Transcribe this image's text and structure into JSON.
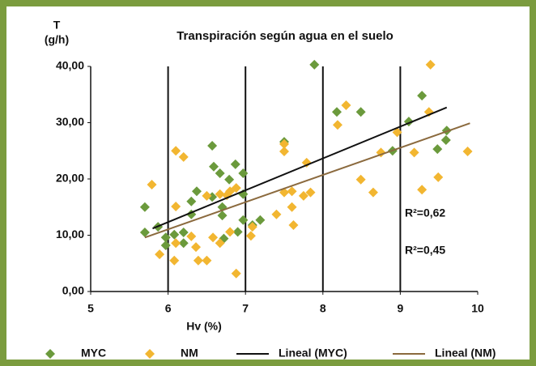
{
  "chart_data": {
    "type": "scatter",
    "title": "Transpiración según agua en el suelo",
    "ylabel": "T",
    "yunit": "(g/h)",
    "xlabel": "Hv (%)",
    "xlim": [
      5,
      10
    ],
    "xticks": [
      5,
      6,
      7,
      8,
      9,
      10
    ],
    "ylim": [
      0,
      40
    ],
    "yticks": [
      {
        "value": 0,
        "label": "0,00"
      },
      {
        "value": 10,
        "label": "10,00"
      },
      {
        "value": 20,
        "label": "20,00"
      },
      {
        "value": 30,
        "label": "30,00"
      },
      {
        "value": 40,
        "label": "40,00"
      }
    ],
    "grid_x": [
      6,
      7,
      8,
      9
    ],
    "series": [
      {
        "name": "MYC",
        "color": "#6b9a3c",
        "x": [
          5.7,
          5.7,
          5.87,
          5.97,
          5.97,
          6.08,
          6.2,
          6.2,
          6.3,
          6.3,
          6.37,
          6.57,
          6.57,
          6.59,
          6.67,
          6.72,
          6.7,
          6.7,
          6.79,
          6.87,
          6.9,
          6.97,
          6.97,
          6.97,
          7.09,
          7.19,
          7.5,
          7.89,
          8.18,
          8.49,
          8.9,
          9.11,
          9.28,
          9.48,
          9.59,
          9.6
        ],
        "values": [
          15,
          10.5,
          11.5,
          9.6,
          8.2,
          10.1,
          8.6,
          10.5,
          13.7,
          16,
          17.8,
          25.9,
          16.8,
          22.2,
          21,
          9.4,
          15,
          13.5,
          19.9,
          22.6,
          10.6,
          21,
          17.3,
          12.7,
          11.8,
          12.7,
          26.6,
          40.3,
          31.9,
          31.9,
          25,
          30.2,
          34.8,
          25.3,
          26.9,
          28.6
        ]
      },
      {
        "name": "NM",
        "color": "#f2b631",
        "x": [
          5.79,
          5.89,
          6.08,
          6.1,
          6.1,
          6.1,
          6.2,
          6.3,
          6.36,
          6.39,
          6.5,
          6.5,
          6.58,
          6.67,
          6.67,
          6.76,
          6.8,
          6.8,
          6.88,
          6.88,
          7.07,
          7.09,
          7.4,
          7.5,
          7.5,
          7.5,
          7.6,
          7.6,
          7.62,
          7.75,
          7.79,
          7.84,
          8.19,
          8.3,
          8.49,
          8.65,
          8.75,
          8.96,
          9.18,
          9.28,
          9.39,
          9.37,
          9.49,
          9.87
        ],
        "values": [
          19,
          6.6,
          5.5,
          25,
          15.1,
          8.6,
          23.9,
          9.8,
          7.9,
          5.5,
          5.5,
          17,
          9.6,
          8.6,
          17.3,
          17.1,
          10.6,
          17.8,
          3.2,
          18.4,
          9.9,
          11.5,
          13.7,
          17.6,
          24.9,
          26.2,
          15,
          17.8,
          11.8,
          17,
          22.9,
          17.6,
          29.6,
          33.1,
          19.9,
          17.6,
          24.7,
          28.3,
          24.7,
          18.1,
          40.3,
          31.9,
          20.3,
          24.9
        ]
      }
    ],
    "lines": [
      {
        "name": "Lineal (MYC)",
        "color": "#111111",
        "x": [
          5.8,
          9.6
        ],
        "values": [
          11.2,
          32.7
        ]
      },
      {
        "name": "Lineal (NM)",
        "color": "#8b6a3e",
        "x": [
          5.7,
          9.9
        ],
        "values": [
          9.6,
          29.9
        ]
      }
    ],
    "annotations": [
      "R²=0,62",
      "R²=0,45"
    ]
  }
}
